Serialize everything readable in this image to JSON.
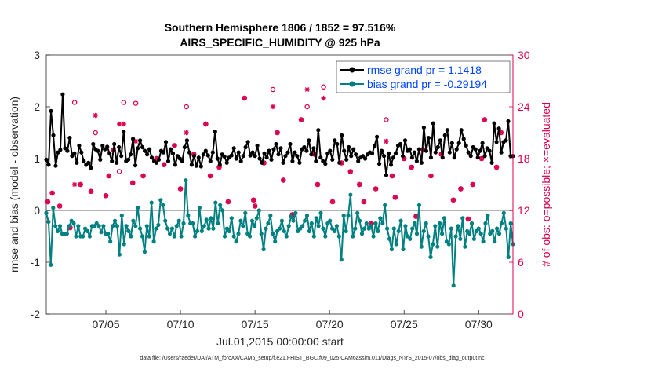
{
  "chart_data": {
    "type": "line",
    "title": "Southern Hemisphere 1806 / 1852 = 97.516%",
    "subtitle": "AIRS_SPECIFIC_HUMIDITY @ 925 hPa",
    "xlabel": "Jul.01,2015 00:00:00 start",
    "ylabel": "rmse and bias (model - observation)",
    "y2label": "# of obs: o=possible; ×=evaluated",
    "footnote": "data file: /Users/raeder/DAI/ATM_forcXX/CAM6_setup/f.e21.FHIST_BGC.f09_025.CAM6assim.011/Diags_NTrS_2015-07/obs_diag_output.nc",
    "xlim": [
      1,
      32.3
    ],
    "ylim": [
      -2,
      3
    ],
    "y2lim": [
      0,
      30
    ],
    "xticks": [
      {
        "value": 5,
        "label": "07/05"
      },
      {
        "value": 10,
        "label": "07/10"
      },
      {
        "value": 15,
        "label": "07/15"
      },
      {
        "value": 20,
        "label": "07/20"
      },
      {
        "value": 25,
        "label": "07/25"
      },
      {
        "value": 30,
        "label": "07/30"
      }
    ],
    "yticks": [
      "-2",
      "-1",
      "0",
      "1",
      "2",
      "3"
    ],
    "y2ticks": [
      "0",
      "6",
      "12",
      "18",
      "24",
      "30"
    ],
    "colors": {
      "rmse": "#000000",
      "bias": "#008080",
      "obs": "#d9004f",
      "legend_text": "#0045ff",
      "zero_line": "#b3b3b3"
    },
    "legend": {
      "position": "top-right",
      "entries": [
        "rmse grand pr = 1.1418",
        "bias grand pr = -0.29194"
      ]
    },
    "series": [
      {
        "name": "rmse",
        "values": [
          0.98,
          0.88,
          1.92,
          1.45,
          0.86,
          1.12,
          1.17,
          2.24,
          1.2,
          1.15,
          1.4,
          1.05,
          1.1,
          0.92,
          1.25,
          1.12,
          0.95,
          0.88,
          0.92,
          0.82,
          1.28,
          1.18,
          1.15,
          0.98,
          1.25,
          1.18,
          1.23,
          1.1,
          0.95,
          1.28,
          0.92,
          1.22,
          1.05,
          1.52,
          0.95,
          0.98,
          1.08,
          1.38,
          0.87,
          1.2,
          1.35,
          1.22,
          1.15,
          1.08,
          1.18,
          1.02,
          0.95,
          0.92,
          0.98,
          1.15,
          1.12,
          1.32,
          0.95,
          1.18,
          1.1,
          0.88,
          1.05,
          1.0,
          0.95,
          1.22,
          1.35,
          1.12,
          0.88,
          1.05,
          0.86,
          1.02,
          0.85,
          1.08,
          1.15,
          1.06,
          0.95,
          1.12,
          1.52,
          1.0,
          0.88,
          1.08,
          1.04,
          0.92,
          1.02,
          1.06,
          1.2,
          1.0,
          1.12,
          0.95,
          1.05,
          1.22,
          1.32,
          1.06,
          1.12,
          1.05,
          1.25,
          1.0,
          0.92,
          1.1,
          1.02,
          1.15,
          0.98,
          1.18,
          1.28,
          1.08,
          1.2,
          0.92,
          1.05,
          1.12,
          1.28,
          0.95,
          1.12,
          1.05,
          0.92,
          1.18,
          1.22,
          1.15,
          1.35,
          1.08,
          1.2,
          0.95,
          1.55,
          1.02,
          0.95,
          0.9,
          1.1,
          1.15,
          0.98,
          1.35,
          1.28,
          0.92,
          1.45,
          1.15,
          0.98,
          1.22,
          1.05,
          1.18,
          1.08,
          0.95,
          1.02,
          1.05,
          1.0,
          1.08,
          1.12,
          1.1,
          1.25,
          1.42,
          0.9,
          1.15,
          1.05,
          0.68,
          1.1,
          0.88,
          1.02,
          1.1,
          1.25,
          1.28,
          1.05,
          1.35,
          1.15,
          1.18,
          1.02,
          1.12,
          0.95,
          1.18,
          0.92,
          1.6,
          1.15,
          1.4,
          1.02,
          1.68,
          1.12,
          1.22,
          1.35,
          1.02,
          1.45,
          1.55,
          1.12,
          1.3,
          1.02,
          1.18,
          1.3,
          1.55,
          1.38,
          1.25,
          1.12,
          1.05,
          1.22,
          1.18,
          1.02,
          1.15,
          1.3,
          1.05,
          1.2,
          1.15,
          0.92,
          1.68,
          1.32,
          1.58,
          1.12,
          1.32,
          1.35,
          1.72,
          1.05,
          1.05
        ],
        "color": "#000000"
      },
      {
        "name": "bias",
        "values": [
          -0.05,
          -0.22,
          -1.05,
          0.05,
          -0.3,
          -0.4,
          -0.3,
          -0.45,
          -0.45,
          -0.45,
          -0.3,
          -0.2,
          -0.25,
          -0.5,
          -0.3,
          -0.5,
          -0.5,
          -0.35,
          -0.4,
          -0.5,
          -0.3,
          -0.3,
          -0.25,
          -0.3,
          -0.42,
          -0.3,
          -0.45,
          -0.45,
          -0.6,
          -0.3,
          -0.2,
          -0.3,
          -0.85,
          -0.1,
          -0.65,
          -0.3,
          -0.4,
          -0.5,
          -0.2,
          -0.3,
          0.05,
          -0.35,
          -0.5,
          -0.8,
          -0.3,
          -0.5,
          0.15,
          -0.6,
          -0.35,
          -0.28,
          0.2,
          0.1,
          -0.2,
          -0.35,
          -0.45,
          -0.35,
          -0.5,
          -0.3,
          -0.2,
          -0.5,
          -0.25,
          0.58,
          -0.1,
          -0.25,
          -0.25,
          -0.5,
          -0.4,
          0.05,
          -0.4,
          -0.3,
          -0.18,
          -0.35,
          -0.15,
          -0.35,
          0.15,
          -0.25,
          0.1,
          0.0,
          -0.5,
          -0.35,
          -0.4,
          -0.15,
          -0.5,
          -0.6,
          -0.45,
          -0.2,
          -0.3,
          -0.05,
          -0.45,
          -0.5,
          -0.2,
          -0.3,
          -0.15,
          0.0,
          -0.45,
          -0.75,
          -0.35,
          -0.25,
          -0.1,
          -0.45,
          -0.6,
          -0.4,
          -0.35,
          -0.2,
          -0.4,
          -0.5,
          -0.3,
          -0.12,
          -0.2,
          -0.05,
          -0.4,
          -0.35,
          -0.3,
          -0.2,
          -0.1,
          -0.4,
          -0.25,
          -0.5,
          -0.15,
          -0.3,
          -0.05,
          -0.35,
          -0.5,
          -0.25,
          -0.2,
          -0.35,
          -0.4,
          -0.3,
          -0.5,
          -0.95,
          -0.1,
          -0.4,
          -0.1,
          0.3,
          -0.5,
          -0.35,
          -0.05,
          -0.2,
          -0.45,
          -0.35,
          -0.25,
          -0.35,
          -0.3,
          -0.5,
          -0.25,
          -0.4,
          -0.15,
          -0.25,
          0.1,
          -0.35,
          -0.55,
          -0.75,
          -0.35,
          -0.65,
          -0.4,
          -0.2,
          -0.75,
          -0.3,
          -0.5,
          -0.55,
          -0.35,
          -0.25,
          -0.45,
          0.1,
          -0.7,
          -0.4,
          -0.25,
          -0.5,
          -0.9,
          -0.65,
          -0.3,
          -0.7,
          -0.25,
          -0.45,
          -0.15,
          -0.6,
          -0.65,
          -0.35,
          -1.45,
          -0.5,
          -0.3,
          -0.55,
          -0.15,
          -0.7,
          -0.4,
          -0.45,
          -0.25,
          -0.55,
          -0.4,
          -0.35,
          -0.45,
          -0.6,
          -0.25,
          -0.1,
          -0.45,
          -0.4,
          -0.6,
          -0.35,
          -0.45,
          -0.25,
          -0.05,
          -0.35,
          -0.9,
          -0.25,
          -0.65
        ],
        "color": "#008080"
      }
    ],
    "obs_possible": [
      [
        1.1,
        13
      ],
      [
        1.4,
        14
      ],
      [
        1.9,
        12.5
      ],
      [
        2.6,
        10
      ],
      [
        2.9,
        24.5
      ],
      [
        3.3,
        15
      ],
      [
        4.0,
        14.2
      ],
      [
        4.3,
        21
      ],
      [
        5.0,
        13.7
      ],
      [
        5.2,
        16
      ],
      [
        5.5,
        19
      ],
      [
        5.9,
        16.5
      ],
      [
        6.2,
        24.5
      ],
      [
        6.8,
        15.2
      ],
      [
        7.0,
        24.4
      ],
      [
        7.5,
        16
      ],
      [
        8.4,
        18
      ],
      [
        8.9,
        17.3
      ],
      [
        9.6,
        19.5
      ],
      [
        10.0,
        14.5
      ],
      [
        10.4,
        24
      ],
      [
        10.9,
        18.5
      ],
      [
        11.7,
        22
      ],
      [
        12.0,
        16
      ],
      [
        12.6,
        17
      ],
      [
        13.2,
        13
      ],
      [
        14.3,
        25
      ],
      [
        14.9,
        13.2
      ],
      [
        15.0,
        12.5
      ],
      [
        15.6,
        17.5
      ],
      [
        16.2,
        26
      ],
      [
        16.5,
        21
      ],
      [
        16.9,
        15.5
      ],
      [
        17.5,
        11.5
      ],
      [
        18.1,
        22.5
      ],
      [
        18.5,
        24
      ],
      [
        19.0,
        18.5
      ],
      [
        19.2,
        15
      ],
      [
        19.6,
        26.3
      ],
      [
        20.2,
        13
      ],
      [
        20.8,
        17.5
      ],
      [
        21.4,
        16.5
      ],
      [
        22.0,
        15
      ],
      [
        22.3,
        13
      ],
      [
        22.8,
        10.5
      ],
      [
        23.1,
        14.5
      ],
      [
        23.8,
        22.5
      ],
      [
        24.2,
        16
      ],
      [
        24.4,
        13.5
      ],
      [
        25.0,
        18
      ],
      [
        25.5,
        17
      ],
      [
        25.8,
        11.3
      ],
      [
        26.3,
        19
      ],
      [
        26.8,
        16
      ],
      [
        27.5,
        18.5
      ],
      [
        28.3,
        13.2
      ],
      [
        28.8,
        14.5
      ],
      [
        29.3,
        11
      ],
      [
        29.6,
        15
      ],
      [
        30.2,
        18
      ],
      [
        30.4,
        22.5
      ],
      [
        31.2,
        17
      ],
      [
        31.5,
        21
      ]
    ],
    "obs_evaluated": [
      [
        1.1,
        13
      ],
      [
        1.4,
        14
      ],
      [
        1.9,
        12.5
      ],
      [
        2.6,
        10
      ],
      [
        2.9,
        15
      ],
      [
        3.3,
        15
      ],
      [
        4.0,
        14.2
      ],
      [
        4.3,
        23
      ],
      [
        5.0,
        13.7
      ],
      [
        5.2,
        16
      ],
      [
        5.5,
        19
      ],
      [
        5.9,
        22
      ],
      [
        6.2,
        22
      ],
      [
        6.8,
        15.2
      ],
      [
        7.0,
        20
      ],
      [
        7.5,
        16
      ],
      [
        8.4,
        18
      ],
      [
        8.9,
        17.3
      ],
      [
        9.6,
        19.5
      ],
      [
        10.0,
        14.5
      ],
      [
        10.4,
        21
      ],
      [
        10.9,
        18.5
      ],
      [
        11.7,
        22
      ],
      [
        12.0,
        16
      ],
      [
        12.6,
        17
      ],
      [
        13.2,
        13
      ],
      [
        14.3,
        25
      ],
      [
        14.9,
        13.2
      ],
      [
        15.0,
        12.5
      ],
      [
        15.6,
        17.5
      ],
      [
        16.2,
        24
      ],
      [
        16.5,
        21
      ],
      [
        16.9,
        15.5
      ],
      [
        17.5,
        11.5
      ],
      [
        18.1,
        22.5
      ],
      [
        18.5,
        26
      ],
      [
        19.0,
        18.5
      ],
      [
        19.2,
        15
      ],
      [
        19.6,
        25
      ],
      [
        20.2,
        13
      ],
      [
        20.8,
        17.5
      ],
      [
        21.4,
        16.5
      ],
      [
        22.0,
        15
      ],
      [
        22.3,
        13
      ],
      [
        22.8,
        10.5
      ],
      [
        23.1,
        14.5
      ],
      [
        23.8,
        20
      ],
      [
        24.2,
        16
      ],
      [
        24.4,
        13.5
      ],
      [
        25.0,
        18
      ],
      [
        25.5,
        17
      ],
      [
        25.8,
        11.3
      ],
      [
        26.3,
        19
      ],
      [
        26.8,
        16
      ],
      [
        27.5,
        18.5
      ],
      [
        28.3,
        13.2
      ],
      [
        28.8,
        14.5
      ],
      [
        29.3,
        11
      ],
      [
        29.6,
        15
      ],
      [
        30.2,
        18
      ],
      [
        30.4,
        22.5
      ],
      [
        31.2,
        17
      ],
      [
        31.5,
        21
      ]
    ]
  }
}
